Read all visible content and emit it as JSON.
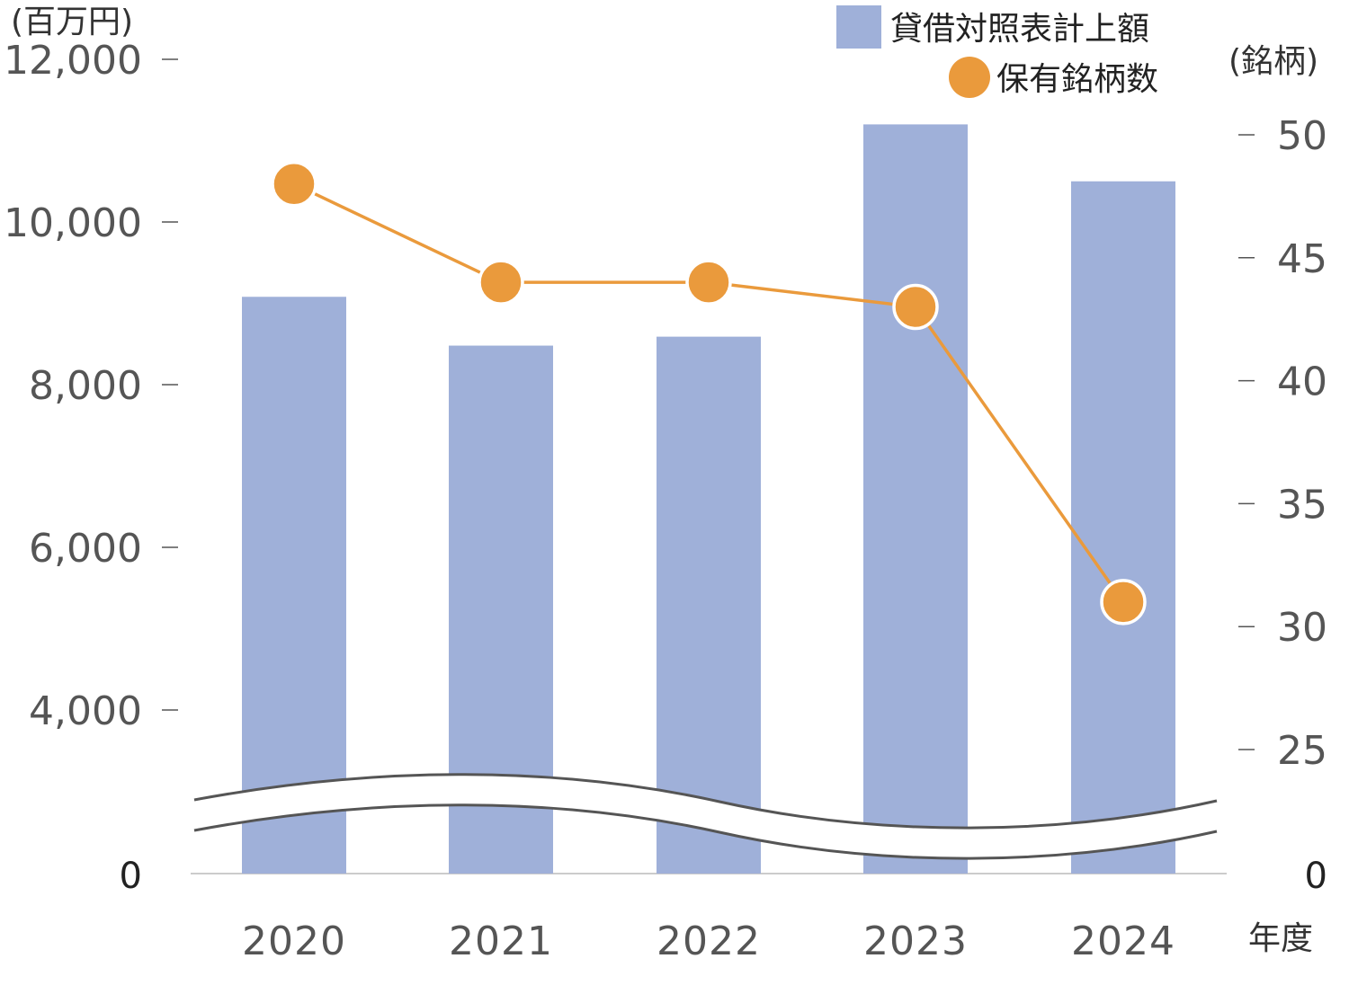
{
  "chart_data": {
    "type": "bar",
    "categories": [
      "2020",
      "2021",
      "2022",
      "2023",
      "2024"
    ],
    "x_axis_label": "年度",
    "left_axis": {
      "unit_label": "(百万円)",
      "ticks": [
        0,
        4000,
        6000,
        8000,
        10000,
        12000
      ],
      "tick_labels": [
        "0",
        "4,000",
        "6,000",
        "8,000",
        "10,000",
        "12,000"
      ],
      "broken": true
    },
    "right_axis": {
      "unit_label": "(銘柄)",
      "ticks": [
        0,
        25,
        30,
        35,
        40,
        45,
        50
      ],
      "tick_labels": [
        "0",
        "25",
        "30",
        "35",
        "40",
        "45",
        "50"
      ],
      "broken": true
    },
    "series": [
      {
        "name": "貸借対照表計上額",
        "type": "bar",
        "axis": "left",
        "color": "#9fb0d9",
        "values": [
          9080,
          8480,
          8590,
          11200,
          10500
        ]
      },
      {
        "name": "保有銘柄数",
        "type": "line",
        "axis": "right",
        "color": "#ea9a3c",
        "values": [
          48,
          44,
          44,
          43,
          31
        ]
      }
    ],
    "legend_position": "top-right",
    "grid": false
  }
}
